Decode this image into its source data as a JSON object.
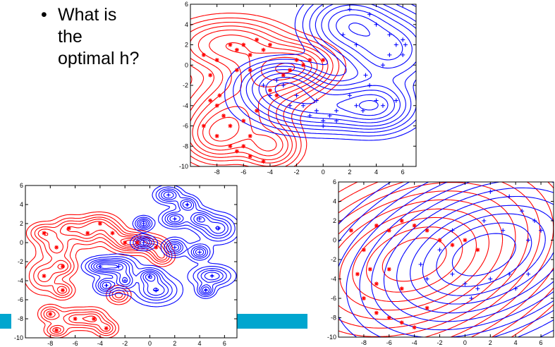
{
  "slide": {
    "bullet_lines": [
      "What is",
      "the",
      "optimal h?"
    ],
    "accent_color": "#00a6cf"
  },
  "chart_data": [
    {
      "type": "contour",
      "xlim": [
        -10,
        7
      ],
      "ylim": [
        -10,
        6
      ],
      "xticks": [
        "-8",
        "-6",
        "-4",
        "-2",
        "0",
        "2",
        "4",
        "6"
      ],
      "yticks": [
        "6",
        "4",
        "2",
        "0",
        "-2",
        "-4",
        "-6",
        "-8",
        "-10"
      ],
      "xtick_values": [
        -8,
        -6,
        -4,
        -2,
        0,
        2,
        4,
        6
      ],
      "ytick_values": [
        6,
        4,
        2,
        0,
        -2,
        -4,
        -6,
        -8,
        -10
      ],
      "series": [
        {
          "color": "#ff0000",
          "marker": "*",
          "centers": [
            [
              -7,
              2,
              2.3,
              1.4
            ],
            [
              -6.5,
              -5,
              2.0,
              2.0
            ],
            [
              -4,
              -1,
              2.0,
              1.6
            ],
            [
              -2,
              0,
              1.6,
              1.2
            ],
            [
              -8,
              -7,
              1.4,
              1.4
            ],
            [
              -4,
              -8,
              1.2,
              1.2
            ]
          ],
          "points": [
            [
              -9,
              1
            ],
            [
              -8.5,
              -1
            ],
            [
              -8,
              0.5
            ],
            [
              -7.8,
              -3
            ],
            [
              -7,
              2
            ],
            [
              -6.5,
              1.5
            ],
            [
              -6,
              2
            ],
            [
              -5.5,
              1
            ],
            [
              -5,
              2.5
            ],
            [
              -4.5,
              1.5
            ],
            [
              -4,
              2
            ],
            [
              -5.5,
              -0.5
            ],
            [
              -6.5,
              -0.5
            ],
            [
              -8.5,
              -3.5
            ],
            [
              -8,
              -4
            ],
            [
              -7.5,
              -5
            ],
            [
              -9,
              -6
            ],
            [
              -8,
              -7
            ],
            [
              -7,
              -8
            ],
            [
              -6.5,
              -8.5
            ],
            [
              -6,
              -8
            ],
            [
              -5.5,
              -9
            ],
            [
              -4.5,
              -9.5
            ],
            [
              -3,
              -1
            ],
            [
              -2.5,
              -0.5
            ],
            [
              -2,
              0.5
            ],
            [
              -1.5,
              0
            ],
            [
              -1,
              0.5
            ],
            [
              0,
              0.5
            ],
            [
              -3.5,
              -3
            ],
            [
              -4,
              -2.5
            ],
            [
              -5,
              -4.5
            ],
            [
              -6,
              -5.5
            ],
            [
              -5.5,
              -7
            ],
            [
              -7,
              -6
            ]
          ]
        },
        {
          "color": "#0000ff",
          "marker": "+",
          "centers": [
            [
              5,
              1.5,
              2.0,
              2.0
            ],
            [
              2,
              4,
              1.8,
              1.6
            ],
            [
              0,
              -4,
              3.0,
              1.4
            ],
            [
              -3,
              -2,
              1.8,
              1.3
            ],
            [
              4,
              -4,
              1.6,
              1.4
            ]
          ],
          "points": [
            [
              2,
              5.5
            ],
            [
              3.5,
              5
            ],
            [
              4,
              4
            ],
            [
              5,
              3
            ],
            [
              5.5,
              2
            ],
            [
              6,
              2.5
            ],
            [
              5,
              1
            ],
            [
              4.5,
              0
            ],
            [
              6,
              1
            ],
            [
              6.2,
              2
            ],
            [
              2.5,
              2
            ],
            [
              1.5,
              3
            ],
            [
              3.5,
              -2
            ],
            [
              3.2,
              -1
            ],
            [
              4,
              -3.5
            ],
            [
              4.5,
              -4
            ],
            [
              5.5,
              -3.5
            ],
            [
              2,
              -3
            ],
            [
              1,
              -4.5
            ],
            [
              0.5,
              -5
            ],
            [
              0,
              -5.5
            ],
            [
              -0.5,
              -4.5
            ],
            [
              -1.5,
              -4
            ],
            [
              -2,
              -3
            ],
            [
              -3,
              -2
            ],
            [
              -3.5,
              -1.5
            ],
            [
              -4.5,
              -2
            ],
            [
              0,
              -6
            ],
            [
              1,
              -5.5
            ],
            [
              -1,
              -5
            ],
            [
              2.5,
              -4
            ],
            [
              3,
              -4.5
            ],
            [
              -0.5,
              -3.5
            ],
            [
              -2.5,
              -4
            ],
            [
              -4,
              -3
            ]
          ]
        }
      ]
    },
    {
      "type": "contour",
      "xlim": [
        -10,
        7
      ],
      "ylim": [
        -10,
        6
      ],
      "xticks": [
        "-8",
        "-6",
        "-4",
        "-2",
        "0",
        "2",
        "4",
        "6"
      ],
      "yticks": [
        "6",
        "4",
        "2",
        "0",
        "-2",
        "-4",
        "-6",
        "-8",
        "-10"
      ],
      "xtick_values": [
        -8,
        -6,
        -4,
        -2,
        0,
        2,
        4,
        6
      ],
      "ytick_values": [
        6,
        4,
        2,
        0,
        -2,
        -4,
        -6,
        -8,
        -10
      ],
      "series": [
        {
          "color": "#ff0000",
          "marker": "*",
          "centers": [
            [
              -8.5,
              1,
              0.7,
              0.6
            ],
            [
              -7.5,
              -0.5,
              0.8,
              0.8
            ],
            [
              -6.5,
              1.5,
              0.7,
              0.7
            ],
            [
              -5,
              1,
              0.7,
              0.8
            ],
            [
              -4,
              2,
              0.8,
              0.6
            ],
            [
              -3,
              1,
              0.6,
              0.6
            ],
            [
              -2,
              0,
              0.8,
              0.6
            ],
            [
              -1,
              0,
              0.8,
              0.6
            ],
            [
              0.5,
              -0.5,
              0.6,
              0.6
            ],
            [
              -8.5,
              -3.5,
              0.8,
              1.0
            ],
            [
              -7,
              -2.5,
              0.6,
              0.6
            ],
            [
              -7,
              -5,
              0.5,
              0.5
            ],
            [
              -8,
              -7.5,
              0.5,
              0.5
            ],
            [
              -6,
              -8,
              0.8,
              0.6
            ],
            [
              -4.5,
              -8,
              0.6,
              0.6
            ],
            [
              -7.5,
              -9.2,
              0.5,
              0.4
            ],
            [
              -3.5,
              -9,
              0.5,
              0.5
            ],
            [
              -2.5,
              -5.5,
              0.5,
              0.5
            ],
            [
              1,
              -1.5,
              0.5,
              0.5
            ]
          ],
          "points": [
            [
              -8.5,
              1
            ],
            [
              -7.5,
              -0.5
            ],
            [
              -6.5,
              1.5
            ],
            [
              -5,
              1
            ],
            [
              -4,
              2
            ],
            [
              -3,
              1
            ],
            [
              -2,
              0
            ],
            [
              -1,
              0
            ],
            [
              0.5,
              -0.5
            ],
            [
              -8.5,
              -3.5
            ],
            [
              -7,
              -2.5
            ],
            [
              -7,
              -5
            ],
            [
              -8,
              -7.5
            ],
            [
              -6,
              -8
            ],
            [
              -4.5,
              -8
            ],
            [
              -7.5,
              -9.2
            ],
            [
              -3.5,
              -9
            ]
          ]
        },
        {
          "color": "#0000ff",
          "marker": "+",
          "centers": [
            [
              1.5,
              5,
              0.6,
              0.5
            ],
            [
              3,
              4,
              0.5,
              0.5
            ],
            [
              2,
              2.5,
              0.6,
              0.5
            ],
            [
              4,
              2.5,
              0.6,
              0.6
            ],
            [
              5.5,
              1.5,
              0.8,
              0.8
            ],
            [
              -0.5,
              2,
              0.4,
              0.4
            ],
            [
              -0.5,
              0,
              0.5,
              0.4
            ],
            [
              2,
              -0.5,
              0.5,
              0.5
            ],
            [
              4,
              -1,
              0.5,
              0.5
            ],
            [
              -4,
              -2.5,
              0.7,
              0.5
            ],
            [
              -2.5,
              -2.5,
              0.8,
              0.6
            ],
            [
              -2,
              -4,
              0.5,
              0.6
            ],
            [
              0,
              -3.5,
              0.6,
              0.5
            ],
            [
              0.5,
              -5,
              1.0,
              0.8
            ],
            [
              -3.5,
              -4.5,
              0.5,
              0.5
            ],
            [
              5,
              -3.5,
              0.9,
              0.6
            ],
            [
              4.5,
              -5,
              0.4,
              0.4
            ]
          ],
          "points": [
            [
              1.5,
              5
            ],
            [
              3,
              4
            ],
            [
              2,
              2.5
            ],
            [
              4,
              2.5
            ],
            [
              5.5,
              1.5
            ],
            [
              -0.5,
              2
            ],
            [
              -0.5,
              0
            ],
            [
              2,
              -0.5
            ],
            [
              4,
              -1
            ],
            [
              -4,
              -2.5
            ],
            [
              -2.5,
              -2.5
            ],
            [
              -2,
              -4
            ],
            [
              0,
              -3.5
            ],
            [
              0.5,
              -5
            ],
            [
              -3.5,
              -4.5
            ],
            [
              5,
              -3.5
            ],
            [
              4.5,
              -5
            ]
          ]
        }
      ]
    },
    {
      "type": "contour",
      "xlim": [
        -10,
        7
      ],
      "ylim": [
        -10,
        6
      ],
      "xticks": [
        "-8",
        "-6",
        "-4",
        "-2",
        "0",
        "2",
        "4",
        "6"
      ],
      "yticks": [
        "6",
        "4",
        "2",
        "0",
        "-2",
        "-4",
        "-6",
        "-8",
        "-10"
      ],
      "xtick_values": [
        -8,
        -6,
        -4,
        -2,
        0,
        2,
        4,
        6
      ],
      "ytick_values": [
        6,
        4,
        2,
        0,
        -2,
        -4,
        -6,
        -8,
        -10
      ],
      "series": [
        {
          "color": "#ff0000",
          "marker": "*",
          "centers": [
            [
              -4,
              -2,
              5.5,
              3.8,
              35
            ]
          ],
          "points": [
            [
              -9,
              1
            ],
            [
              -8,
              -1
            ],
            [
              -7,
              1.5
            ],
            [
              -6,
              1
            ],
            [
              -5,
              2
            ],
            [
              -4,
              1.5
            ],
            [
              -3,
              1
            ],
            [
              -2,
              0
            ],
            [
              -1,
              -0.5
            ],
            [
              0,
              0
            ],
            [
              1,
              -1
            ],
            [
              -8.5,
              -3.5
            ],
            [
              -7.5,
              -3
            ],
            [
              -7,
              -4.5
            ],
            [
              -8,
              -6
            ],
            [
              -7,
              -7.5
            ],
            [
              -6,
              -8
            ],
            [
              -5,
              -8.5
            ],
            [
              -4,
              -9
            ],
            [
              -3,
              -7
            ],
            [
              -5,
              -5
            ],
            [
              -6,
              -3
            ]
          ]
        },
        {
          "color": "#0000ff",
          "marker": "+",
          "centers": [
            [
              1.5,
              -1.5,
              5.5,
              3.6,
              35
            ]
          ],
          "points": [
            [
              2,
              5
            ],
            [
              3.5,
              4.5
            ],
            [
              4.5,
              3
            ],
            [
              5.5,
              2
            ],
            [
              6,
              1
            ],
            [
              5,
              0
            ],
            [
              3,
              1
            ],
            [
              1.5,
              2
            ],
            [
              -1,
              1
            ],
            [
              -2,
              -1
            ],
            [
              -3.5,
              -2.5
            ],
            [
              -3,
              -4
            ],
            [
              -1,
              -3.5
            ],
            [
              0,
              -4.5
            ],
            [
              1,
              -5
            ],
            [
              2,
              -4
            ],
            [
              3.5,
              -3.5
            ],
            [
              5,
              -3.5
            ],
            [
              4,
              -5
            ],
            [
              0.5,
              -6
            ]
          ]
        }
      ]
    }
  ]
}
